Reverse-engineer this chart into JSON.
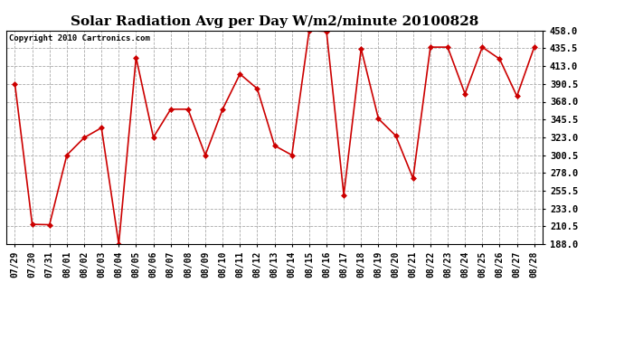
{
  "title": "Solar Radiation Avg per Day W/m2/minute 20100828",
  "copyright_text": "Copyright 2010 Cartronics.com",
  "labels": [
    "07/29",
    "07/30",
    "07/31",
    "08/01",
    "08/02",
    "08/03",
    "08/04",
    "08/05",
    "08/06",
    "08/07",
    "08/08",
    "08/09",
    "08/10",
    "08/11",
    "08/12",
    "08/13",
    "08/14",
    "08/15",
    "08/16",
    "08/17",
    "08/18",
    "08/19",
    "08/20",
    "08/21",
    "08/22",
    "08/23",
    "08/24",
    "08/25",
    "08/26",
    "08/27",
    "08/28"
  ],
  "values": [
    390.5,
    213.0,
    212.5,
    300.5,
    322.5,
    335.0,
    188.0,
    424.0,
    323.0,
    358.5,
    358.5,
    300.5,
    358.5,
    403.0,
    384.5,
    312.5,
    300.5,
    458.0,
    457.0,
    250.0,
    435.0,
    346.5,
    325.0,
    271.0,
    437.0,
    437.0,
    378.0,
    437.0,
    422.0,
    375.0,
    437.0
  ],
  "line_color": "#cc0000",
  "marker": "D",
  "marker_size": 3,
  "marker_color": "#cc0000",
  "ylim": [
    188.0,
    458.0
  ],
  "yticks": [
    188.0,
    210.5,
    233.0,
    255.5,
    278.0,
    300.5,
    323.0,
    345.5,
    368.0,
    390.5,
    413.0,
    435.5,
    458.0
  ],
  "grid_color": "#aaaaaa",
  "bg_color": "#ffffff",
  "title_fontsize": 11,
  "copyright_fontsize": 6.5,
  "tick_fontsize": 7,
  "ytick_fontsize": 7.5
}
